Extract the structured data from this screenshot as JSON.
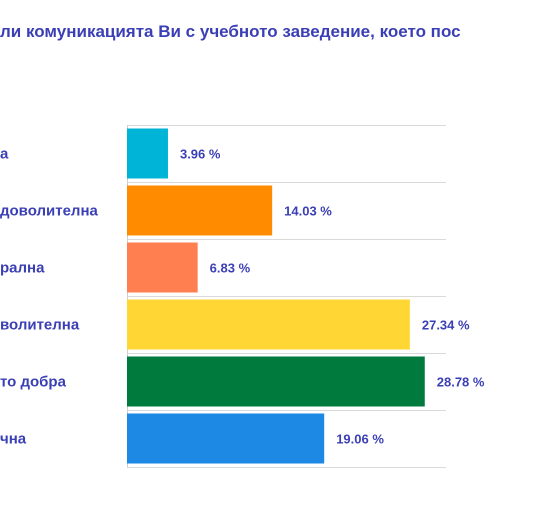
{
  "chart_data": {
    "type": "bar",
    "orientation": "horizontal",
    "title": "ли комуникацията Ви с учебното заведение, което пос",
    "categories": [
      "а",
      "доволителна",
      "рална",
      "волителна",
      "то добра",
      "чна"
    ],
    "values": [
      3.96,
      14.03,
      6.83,
      27.34,
      28.78,
      19.06
    ],
    "value_labels": [
      "3.96 %",
      "14.03 %",
      "6.83 %",
      "27.34 %",
      "28.78 %",
      "19.06 %"
    ],
    "colors": [
      "#00b4d8",
      "#ff8c00",
      "#ff7f50",
      "#ffd633",
      "#007a3d",
      "#1e88e5"
    ],
    "xlim": [
      0,
      30
    ],
    "grid": true,
    "legend": "none"
  }
}
